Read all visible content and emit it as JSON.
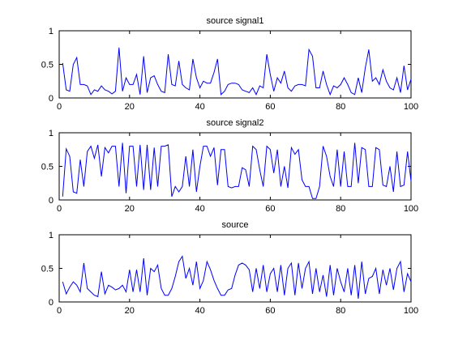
{
  "figure": {
    "background": "#ffffff",
    "line_color": "#0000ff",
    "axis_color": "#000000"
  },
  "chart_data": [
    {
      "type": "line",
      "title": "source signal1",
      "xlim": [
        0,
        100
      ],
      "ylim": [
        0,
        1
      ],
      "x_ticks": [
        "0",
        "20",
        "40",
        "60",
        "80",
        "100"
      ],
      "y_ticks": [
        "0",
        "0.5",
        "1"
      ],
      "grid": false,
      "series": [
        {
          "x": [
            1,
            2,
            3,
            4,
            5,
            6,
            7,
            8,
            9,
            10,
            11,
            12,
            13,
            14,
            15,
            16,
            17,
            18,
            19,
            20,
            21,
            22,
            23,
            24,
            25,
            26,
            27,
            28,
            29,
            30,
            31,
            32,
            33,
            34,
            35,
            36,
            37,
            38,
            39,
            40,
            41,
            42,
            43,
            44,
            45,
            46,
            47,
            48,
            49,
            50,
            51,
            52,
            53,
            54,
            55,
            56,
            57,
            58,
            59,
            60,
            61,
            62,
            63,
            64,
            65,
            66,
            67,
            68,
            69,
            70,
            71,
            72,
            73,
            74,
            75,
            76,
            77,
            78,
            79,
            80,
            81,
            82,
            83,
            84,
            85,
            86,
            87,
            88,
            89,
            90,
            91,
            92,
            93,
            94,
            95,
            96,
            97,
            98,
            99,
            100
          ],
          "values": [
            0.52,
            0.12,
            0.1,
            0.5,
            0.6,
            0.2,
            0.2,
            0.18,
            0.05,
            0.12,
            0.1,
            0.18,
            0.12,
            0.1,
            0.06,
            0.1,
            0.75,
            0.1,
            0.3,
            0.2,
            0.2,
            0.35,
            0.05,
            0.62,
            0.08,
            0.3,
            0.33,
            0.2,
            0.1,
            0.08,
            0.65,
            0.2,
            0.18,
            0.55,
            0.2,
            0.15,
            0.12,
            0.58,
            0.3,
            0.15,
            0.25,
            0.22,
            0.22,
            0.38,
            0.58,
            0.05,
            0.1,
            0.2,
            0.22,
            0.22,
            0.2,
            0.12,
            0.1,
            0.08,
            0.15,
            0.05,
            0.18,
            0.15,
            0.65,
            0.35,
            0.1,
            0.3,
            0.22,
            0.4,
            0.15,
            0.1,
            0.18,
            0.2,
            0.2,
            0.18,
            0.72,
            0.62,
            0.15,
            0.15,
            0.4,
            0.2,
            0.05,
            0.18,
            0.15,
            0.2,
            0.3,
            0.2,
            0.08,
            0.05,
            0.3,
            0.08,
            0.45,
            0.72,
            0.25,
            0.3,
            0.2,
            0.42,
            0.25,
            0.15,
            0.12,
            0.3,
            0.08,
            0.48,
            0.12,
            0.28
          ]
        }
      ]
    },
    {
      "type": "line",
      "title": "source signal2",
      "xlim": [
        0,
        100
      ],
      "ylim": [
        0,
        1
      ],
      "x_ticks": [
        "0",
        "20",
        "40",
        "60",
        "80",
        "100"
      ],
      "y_ticks": [
        "0",
        "0.5",
        "1"
      ],
      "grid": false,
      "series": [
        {
          "x": [
            1,
            2,
            3,
            4,
            5,
            6,
            7,
            8,
            9,
            10,
            11,
            12,
            13,
            14,
            15,
            16,
            17,
            18,
            19,
            20,
            21,
            22,
            23,
            24,
            25,
            26,
            27,
            28,
            29,
            30,
            31,
            32,
            33,
            34,
            35,
            36,
            37,
            38,
            39,
            40,
            41,
            42,
            43,
            44,
            45,
            46,
            47,
            48,
            49,
            50,
            51,
            52,
            53,
            54,
            55,
            56,
            57,
            58,
            59,
            60,
            61,
            62,
            63,
            64,
            65,
            66,
            67,
            68,
            69,
            70,
            71,
            72,
            73,
            74,
            75,
            76,
            77,
            78,
            79,
            80,
            81,
            82,
            83,
            84,
            85,
            86,
            87,
            88,
            89,
            90,
            91,
            92,
            93,
            94,
            95,
            96,
            97,
            98,
            99,
            100
          ],
          "values": [
            0.05,
            0.76,
            0.65,
            0.12,
            0.1,
            0.6,
            0.2,
            0.72,
            0.8,
            0.62,
            0.82,
            0.35,
            0.78,
            0.7,
            0.8,
            0.8,
            0.2,
            0.85,
            0.1,
            0.8,
            0.8,
            0.2,
            0.82,
            0.15,
            0.82,
            0.15,
            0.78,
            0.2,
            0.8,
            0.8,
            0.82,
            0.05,
            0.2,
            0.12,
            0.2,
            0.65,
            0.2,
            0.75,
            0.12,
            0.5,
            0.8,
            0.8,
            0.65,
            0.78,
            0.22,
            0.75,
            0.75,
            0.2,
            0.18,
            0.2,
            0.2,
            0.48,
            0.45,
            0.2,
            0.8,
            0.75,
            0.45,
            0.2,
            0.8,
            0.75,
            0.4,
            0.75,
            0.2,
            0.5,
            0.18,
            0.78,
            0.68,
            0.75,
            0.3,
            0.2,
            0.2,
            0.02,
            0.02,
            0.2,
            0.8,
            0.65,
            0.35,
            0.2,
            0.75,
            0.2,
            0.72,
            0.2,
            0.2,
            0.85,
            0.25,
            0.78,
            0.75,
            0.2,
            0.2,
            0.78,
            0.75,
            0.22,
            0.2,
            0.5,
            0.12,
            0.72,
            0.2,
            0.22,
            0.72,
            0.28
          ]
        }
      ]
    },
    {
      "type": "line",
      "title": "source",
      "xlim": [
        0,
        100
      ],
      "ylim": [
        0,
        1
      ],
      "x_ticks": [
        "0",
        "20",
        "40",
        "60",
        "80",
        "100"
      ],
      "y_ticks": [
        "0",
        "0.5",
        "1"
      ],
      "grid": false,
      "series": [
        {
          "x": [
            1,
            2,
            3,
            4,
            5,
            6,
            7,
            8,
            9,
            10,
            11,
            12,
            13,
            14,
            15,
            16,
            17,
            18,
            19,
            20,
            21,
            22,
            23,
            24,
            25,
            26,
            27,
            28,
            29,
            30,
            31,
            32,
            33,
            34,
            35,
            36,
            37,
            38,
            39,
            40,
            41,
            42,
            43,
            44,
            45,
            46,
            47,
            48,
            49,
            50,
            51,
            52,
            53,
            54,
            55,
            56,
            57,
            58,
            59,
            60,
            61,
            62,
            63,
            64,
            65,
            66,
            67,
            68,
            69,
            70,
            71,
            72,
            73,
            74,
            75,
            76,
            77,
            78,
            79,
            80,
            81,
            82,
            83,
            84,
            85,
            86,
            87,
            88,
            89,
            90,
            91,
            92,
            93,
            94,
            95,
            96,
            97,
            98,
            99,
            100
          ],
          "values": [
            0.3,
            0.12,
            0.22,
            0.3,
            0.25,
            0.15,
            0.58,
            0.2,
            0.15,
            0.1,
            0.08,
            0.45,
            0.12,
            0.25,
            0.22,
            0.18,
            0.2,
            0.25,
            0.15,
            0.48,
            0.15,
            0.48,
            0.15,
            0.65,
            0.1,
            0.5,
            0.45,
            0.55,
            0.2,
            0.1,
            0.1,
            0.2,
            0.38,
            0.6,
            0.68,
            0.35,
            0.5,
            0.25,
            0.6,
            0.2,
            0.32,
            0.6,
            0.48,
            0.32,
            0.2,
            0.1,
            0.1,
            0.18,
            0.2,
            0.4,
            0.55,
            0.58,
            0.55,
            0.48,
            0.15,
            0.5,
            0.2,
            0.55,
            0.15,
            0.42,
            0.5,
            0.15,
            0.55,
            0.1,
            0.5,
            0.58,
            0.1,
            0.58,
            0.2,
            0.5,
            0.6,
            0.12,
            0.5,
            0.15,
            0.4,
            0.08,
            0.55,
            0.1,
            0.5,
            0.3,
            0.15,
            0.5,
            0.1,
            0.55,
            0.05,
            0.6,
            0.12,
            0.35,
            0.38,
            0.5,
            0.12,
            0.48,
            0.25,
            0.5,
            0.18,
            0.5,
            0.6,
            0.15,
            0.42,
            0.3
          ]
        }
      ]
    }
  ]
}
